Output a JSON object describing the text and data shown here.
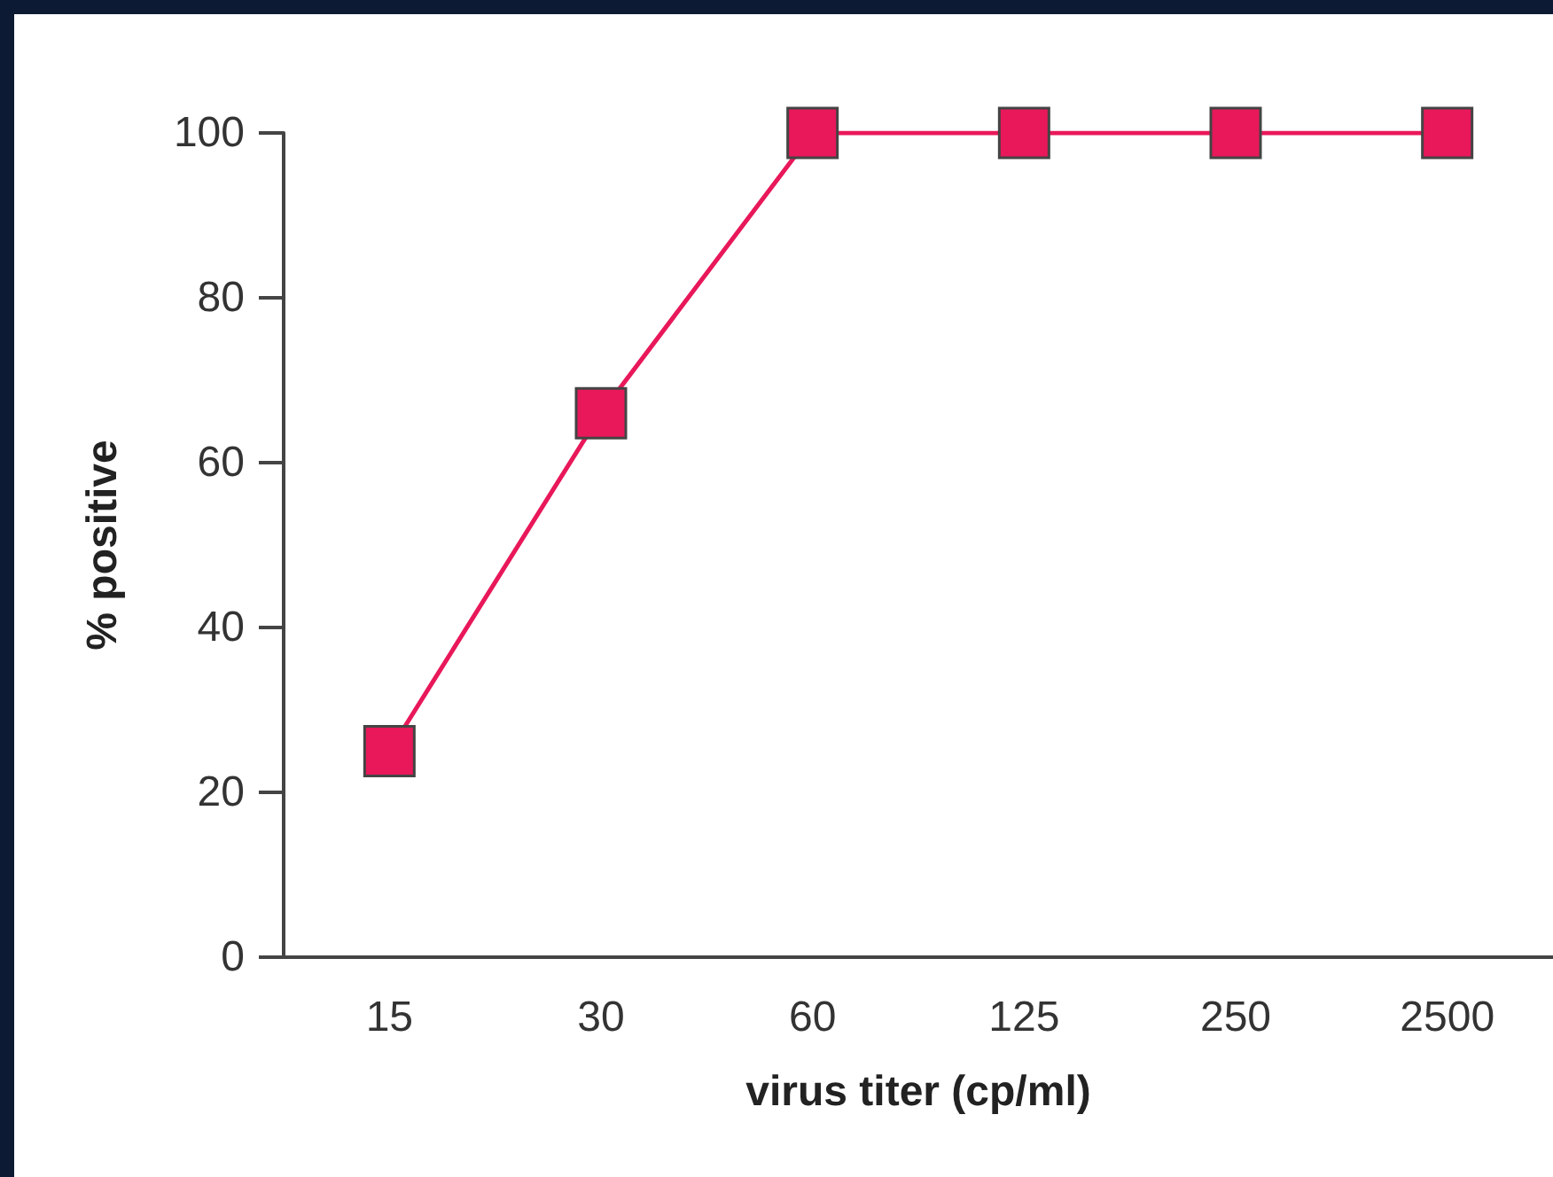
{
  "chart_data": {
    "type": "line",
    "xlabel": "virus titer (cp/ml)",
    "ylabel": "% positive",
    "categories": [
      "15",
      "30",
      "60",
      "125",
      "250",
      "2500"
    ],
    "series": [
      {
        "color": "#e8185a",
        "values": [
          25,
          66,
          100,
          100,
          100,
          100
        ]
      }
    ],
    "ylim": [
      0,
      100
    ],
    "yticks": [
      0,
      20,
      40,
      60,
      80,
      100
    ],
    "grid": false,
    "marker": "square",
    "line_style": "solid"
  }
}
